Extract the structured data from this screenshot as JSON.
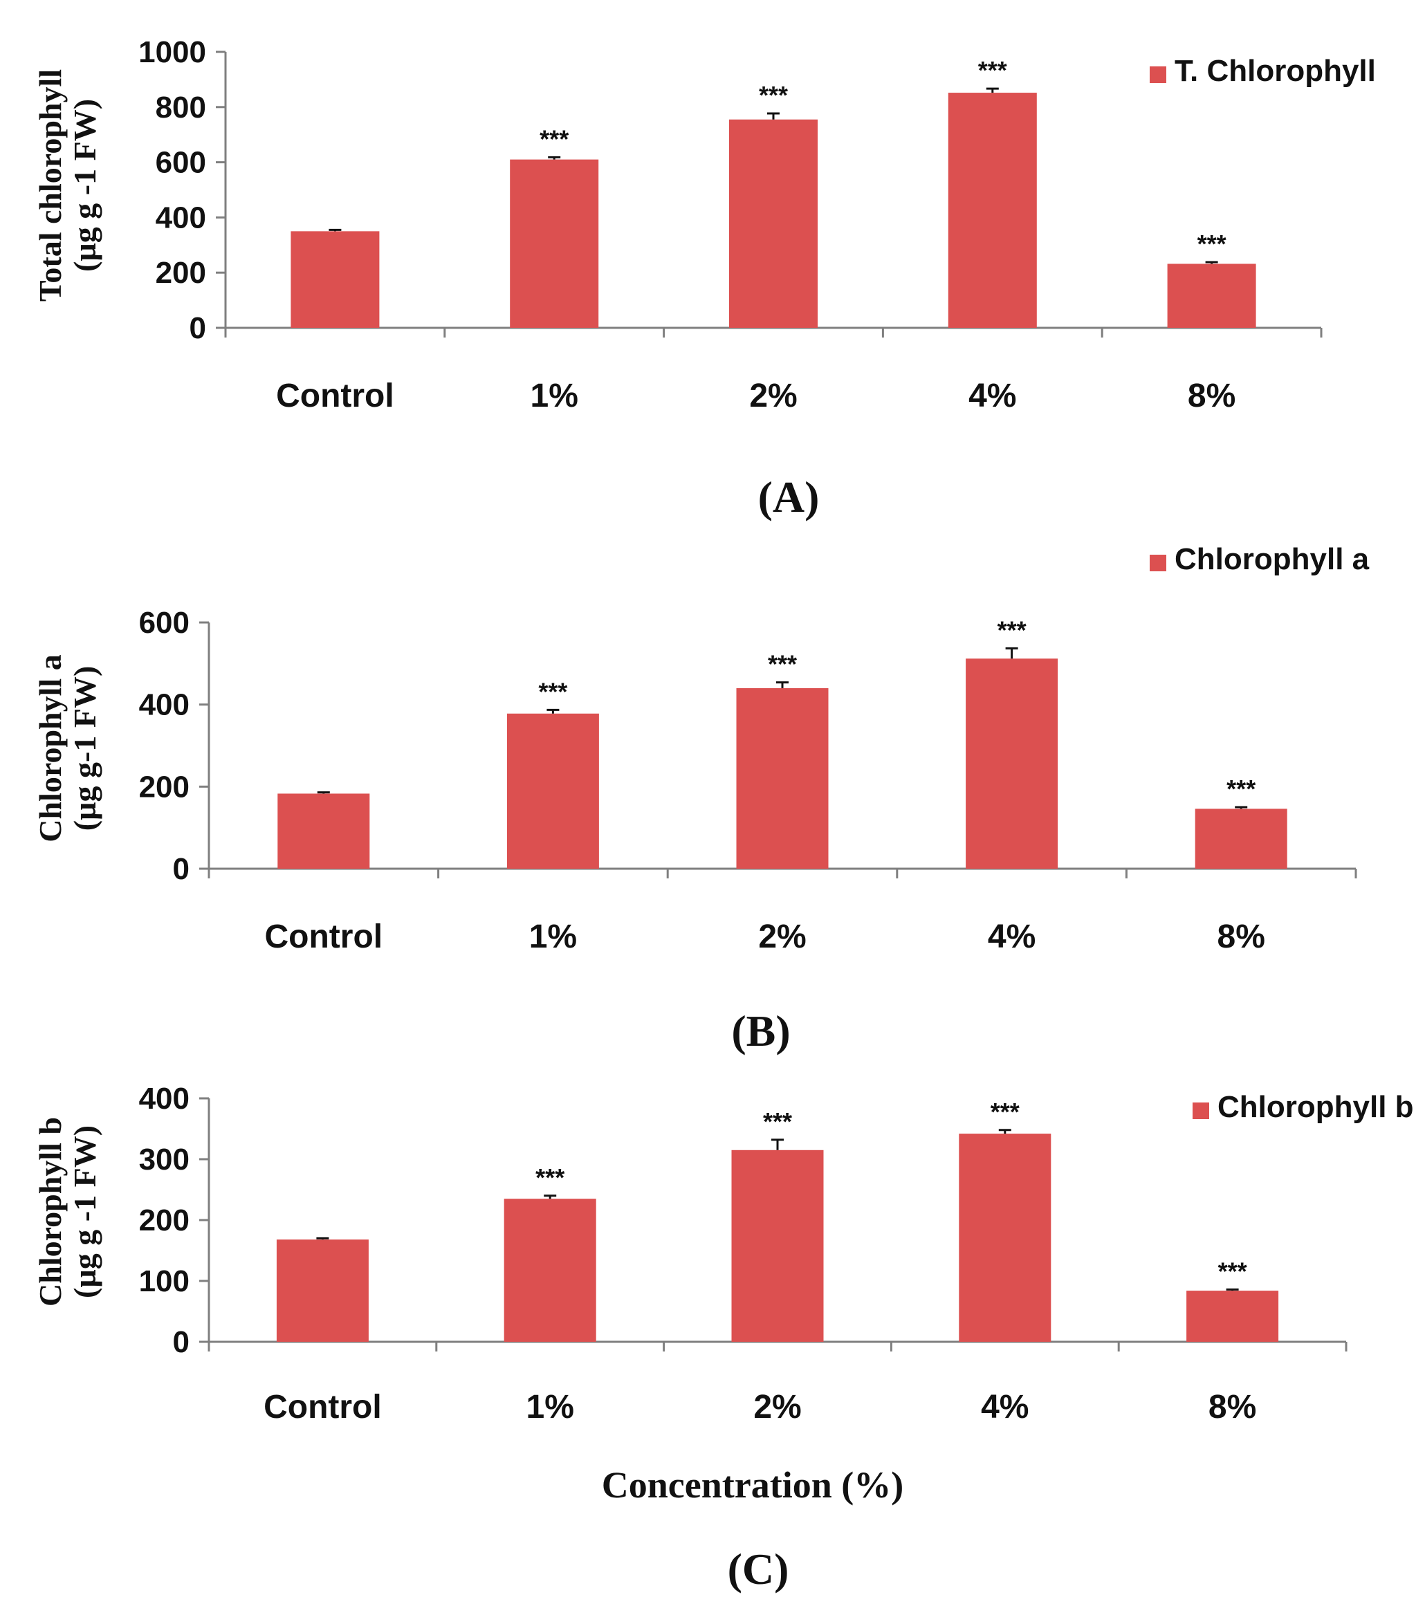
{
  "colors": {
    "bar": "#dc5050",
    "axis": "#7f7f7f",
    "error": "#111111",
    "text": "#111111"
  },
  "figure": {
    "xlabel": "Concentration (%)"
  },
  "chart_data": [
    {
      "type": "bar",
      "panel_label": "(A)",
      "ylabel_line1": "Total chlorophyll",
      "ylabel_line2": "(µg g -1 FW)",
      "legend": "T. Chlorophyll",
      "categories": [
        "Control",
        "1%",
        "2%",
        "4%",
        "8%"
      ],
      "series": [
        {
          "name": "T. Chlorophyll",
          "values": [
            350,
            610,
            755,
            852,
            232
          ],
          "errors": [
            5,
            8,
            22,
            15,
            6
          ]
        }
      ],
      "significance": [
        "",
        "***",
        "***",
        "***",
        "***"
      ],
      "ylim": [
        0,
        1000
      ],
      "yticks": [
        0,
        200,
        400,
        600,
        800,
        1000
      ]
    },
    {
      "type": "bar",
      "panel_label": "(B)",
      "ylabel_line1": "Chlorophyll a",
      "ylabel_line2": "(µg g-1 FW)",
      "legend": "Chlorophyll a",
      "categories": [
        "Control",
        "1%",
        "2%",
        "4%",
        "8%"
      ],
      "series": [
        {
          "name": "Chlorophyll a",
          "values": [
            183,
            378,
            440,
            512,
            146
          ],
          "errors": [
            3,
            9,
            14,
            25,
            4
          ]
        }
      ],
      "significance": [
        "",
        "***",
        "***",
        "***",
        "***"
      ],
      "ylim": [
        0,
        600
      ],
      "yticks": [
        0,
        200,
        400,
        600
      ]
    },
    {
      "type": "bar",
      "panel_label": "(C)",
      "ylabel_line1": "Chlorophyll b",
      "ylabel_line2": "(µg g -1 FW)",
      "legend": "Chlorophyll  b",
      "categories": [
        "Control",
        "1%",
        "2%",
        "4%",
        "8%"
      ],
      "series": [
        {
          "name": "Chlorophyll b",
          "values": [
            168,
            235,
            315,
            342,
            84
          ],
          "errors": [
            2,
            5,
            17,
            6,
            2
          ]
        }
      ],
      "significance": [
        "",
        "***",
        "***",
        "***",
        "***"
      ],
      "ylim": [
        0,
        400
      ],
      "yticks": [
        0,
        100,
        200,
        300,
        400
      ]
    }
  ]
}
